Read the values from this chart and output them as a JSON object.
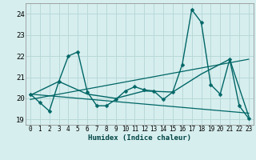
{
  "title": "",
  "xlabel": "Humidex (Indice chaleur)",
  "ylabel": "",
  "background_color": "#d7eeee",
  "grid_color": "#b8d8d8",
  "line_color": "#006666",
  "xlim": [
    -0.5,
    23.5
  ],
  "ylim": [
    18.75,
    24.5
  ],
  "yticks": [
    19,
    20,
    21,
    22,
    23,
    24
  ],
  "xticks": [
    0,
    1,
    2,
    3,
    4,
    5,
    6,
    7,
    8,
    9,
    10,
    11,
    12,
    13,
    14,
    15,
    16,
    17,
    18,
    19,
    20,
    21,
    22,
    23
  ],
  "lines": [
    {
      "x": [
        0,
        1,
        2,
        3,
        4,
        5,
        6,
        7,
        8,
        9,
        10,
        11,
        12,
        13,
        14,
        15,
        16,
        17,
        18,
        19,
        20,
        21,
        22,
        23
      ],
      "y": [
        20.2,
        19.8,
        19.4,
        20.8,
        22.0,
        22.2,
        20.3,
        19.65,
        19.65,
        19.95,
        20.35,
        20.55,
        20.4,
        20.35,
        19.95,
        20.3,
        21.6,
        24.2,
        23.6,
        20.65,
        20.2,
        21.85,
        19.65,
        19.05
      ],
      "marker": "D",
      "linewidth": 1.0,
      "markersize": 2.5
    },
    {
      "x": [
        0,
        3,
        6,
        9,
        12,
        15,
        18,
        21,
        23
      ],
      "y": [
        20.15,
        20.8,
        20.2,
        20.0,
        20.35,
        20.3,
        21.15,
        21.85,
        19.15
      ],
      "marker": null,
      "linewidth": 1.0,
      "markersize": 0
    },
    {
      "x": [
        0,
        23
      ],
      "y": [
        20.2,
        19.3
      ],
      "marker": null,
      "linewidth": 0.9,
      "markersize": 0
    },
    {
      "x": [
        0,
        23
      ],
      "y": [
        19.95,
        21.85
      ],
      "marker": null,
      "linewidth": 0.9,
      "markersize": 0
    }
  ]
}
